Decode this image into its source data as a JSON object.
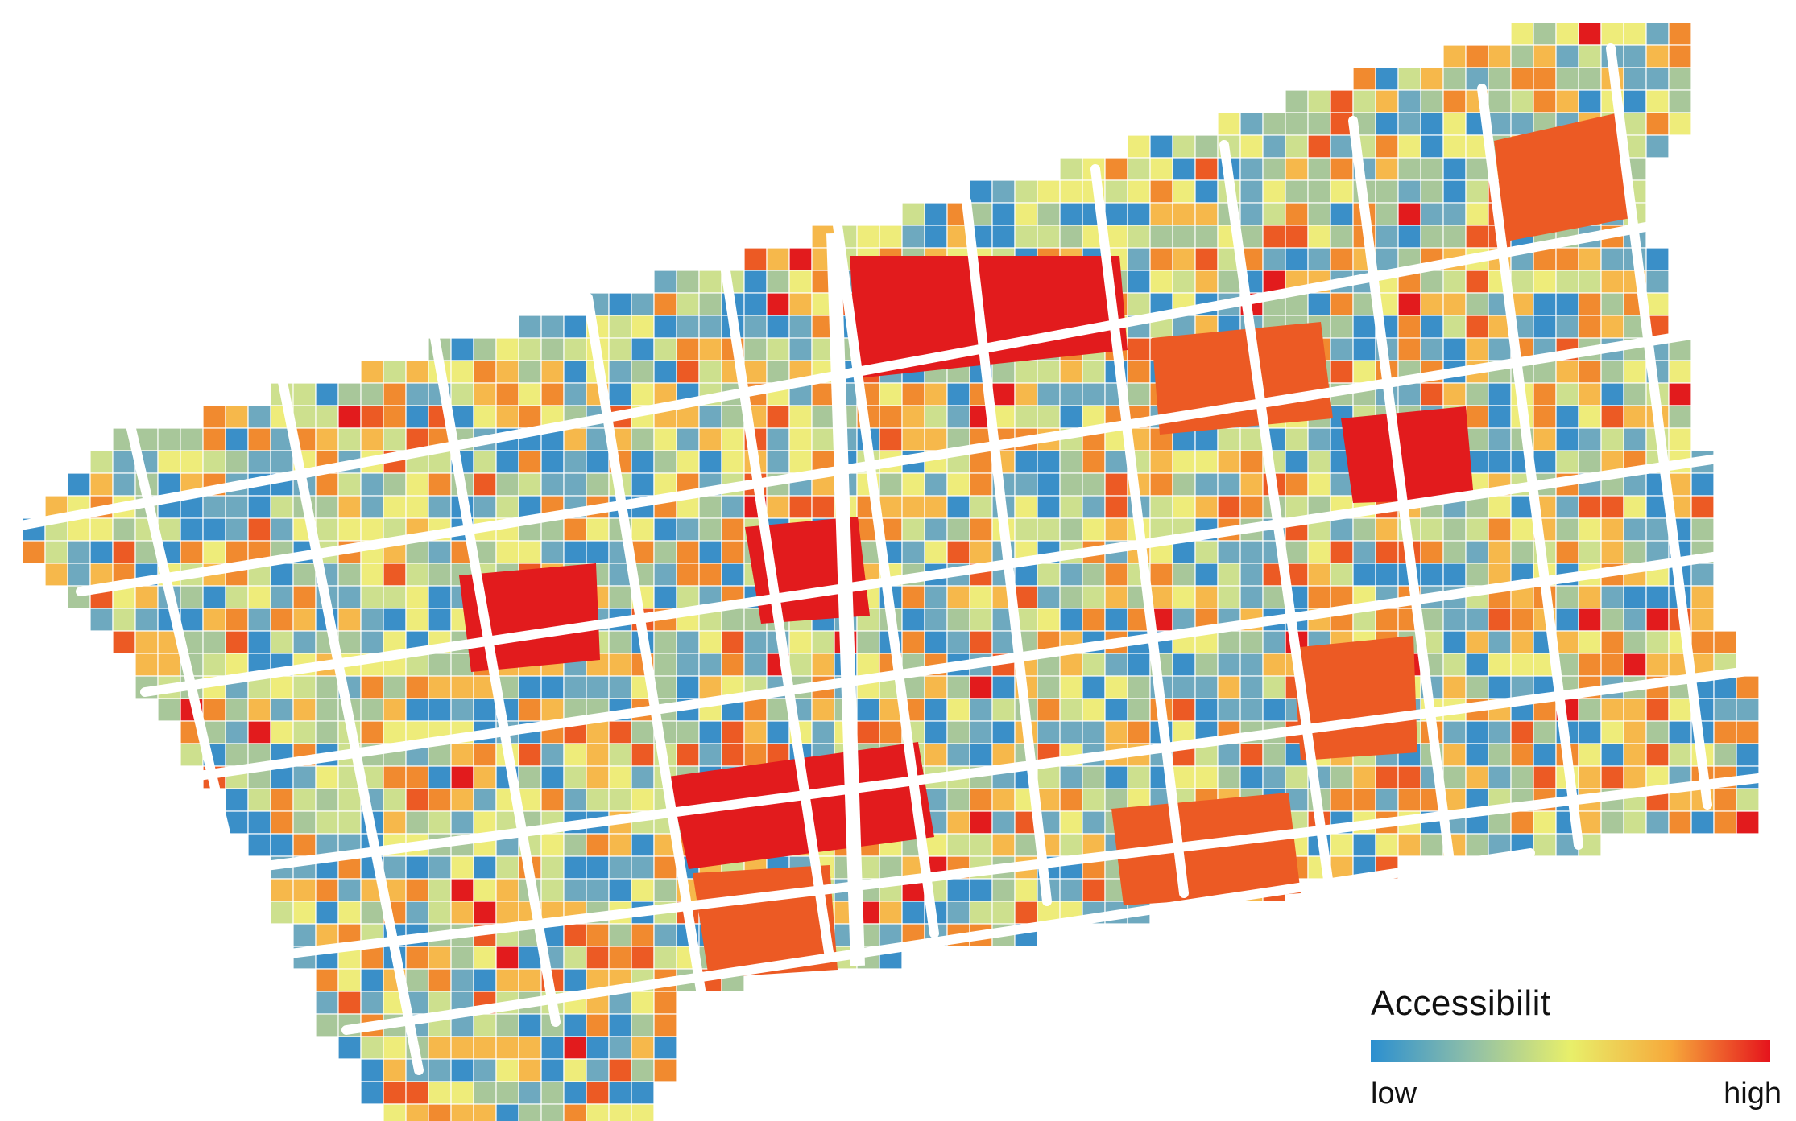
{
  "legend": {
    "title": "Accessibilit",
    "low_label": "low",
    "high_label": "high",
    "gradient_colors": [
      "#2b8fd0",
      "#8fbfa8",
      "#e8ef6a",
      "#f6a93b",
      "#e5131c"
    ]
  },
  "palette": {
    "blue": "#3a8fc8",
    "teal": "#6ea9bf",
    "sage": "#a8c79a",
    "lightgreen": "#cde08e",
    "yellow": "#eeec7a",
    "lightorange": "#f6b84b",
    "orange": "#f18a2f",
    "redorange": "#ec5a24",
    "red": "#e21b1d"
  }
}
